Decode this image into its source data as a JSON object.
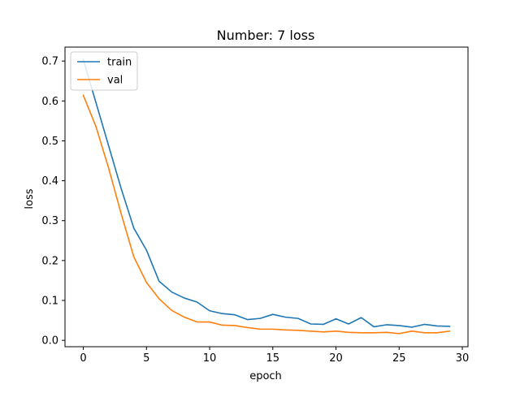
{
  "chart_data": {
    "type": "line",
    "title": "Number: 7 loss",
    "xlabel": "epoch",
    "ylabel": "loss",
    "xlim": [
      -1.45,
      30.45
    ],
    "ylim": [
      -0.016,
      0.735
    ],
    "xticks": [
      0,
      5,
      10,
      15,
      20,
      25,
      30
    ],
    "yticks": [
      0.0,
      0.1,
      0.2,
      0.3,
      0.4,
      0.5,
      0.6,
      0.7
    ],
    "grid": false,
    "legend_position": "top-left",
    "x": [
      0,
      1,
      2,
      3,
      4,
      5,
      6,
      7,
      8,
      9,
      10,
      11,
      12,
      13,
      14,
      15,
      16,
      17,
      18,
      19,
      20,
      21,
      22,
      23,
      24,
      25,
      26,
      27,
      28,
      29
    ],
    "series": [
      {
        "name": "train",
        "color": "#1f77b4",
        "values": [
          0.704,
          0.596,
          0.488,
          0.38,
          0.281,
          0.226,
          0.148,
          0.121,
          0.106,
          0.096,
          0.074,
          0.067,
          0.064,
          0.052,
          0.055,
          0.065,
          0.058,
          0.055,
          0.041,
          0.04,
          0.054,
          0.041,
          0.057,
          0.034,
          0.039,
          0.037,
          0.033,
          0.04,
          0.036,
          0.035
        ]
      },
      {
        "name": "val",
        "color": "#ff7f0e",
        "values": [
          0.614,
          0.536,
          0.432,
          0.317,
          0.209,
          0.145,
          0.104,
          0.075,
          0.058,
          0.046,
          0.046,
          0.038,
          0.037,
          0.032,
          0.028,
          0.028,
          0.026,
          0.025,
          0.023,
          0.021,
          0.023,
          0.02,
          0.019,
          0.019,
          0.02,
          0.017,
          0.023,
          0.019,
          0.019,
          0.023
        ]
      }
    ]
  }
}
